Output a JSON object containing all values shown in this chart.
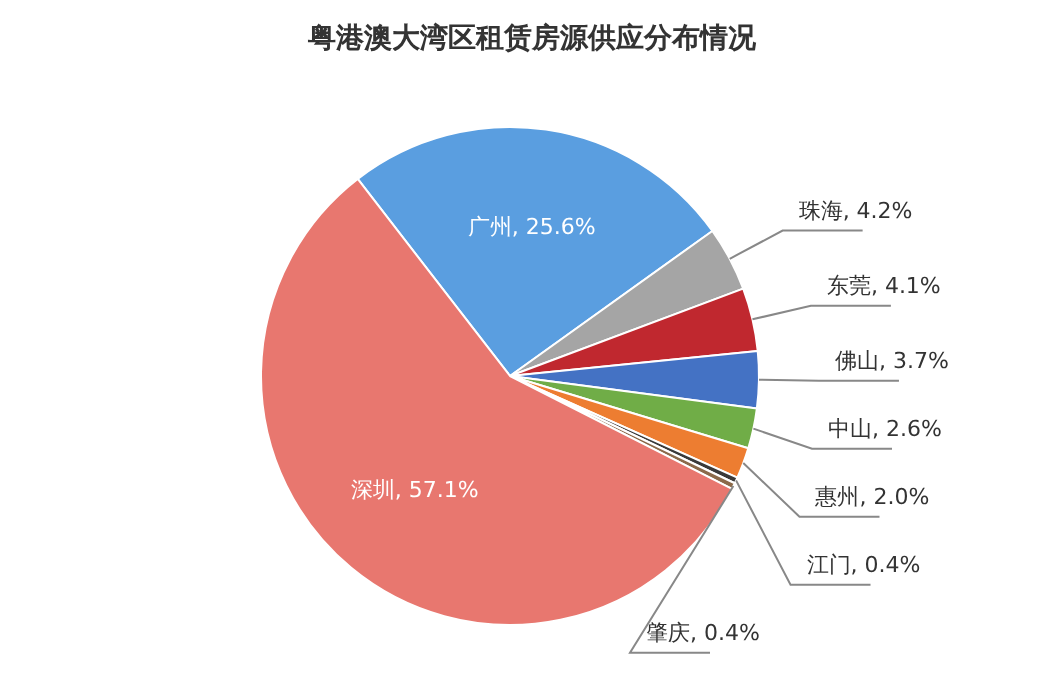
{
  "chart_data": {
    "type": "pie",
    "title": "粤港澳大湾区租赁房源供应分布情况",
    "categories": [
      "广州",
      "珠海",
      "东莞",
      "佛山",
      "中山",
      "惠州",
      "江门",
      "肇庆",
      "深圳"
    ],
    "values": [
      25.6,
      4.2,
      4.1,
      3.7,
      2.6,
      2.0,
      0.4,
      0.4,
      57.1
    ],
    "value_labels": [
      "25.6%",
      "4.2%",
      "4.1%",
      "3.7%",
      "2.6%",
      "2.0%",
      "0.4%",
      "0.4%",
      "57.1%"
    ],
    "colors": [
      "#5a9ee0",
      "#a5a5a5",
      "#c0282f",
      "#4472c4",
      "#70ad47",
      "#ed7d31",
      "#3a3a3a",
      "#8b6a4a",
      "#e8776f"
    ],
    "legend": false
  }
}
